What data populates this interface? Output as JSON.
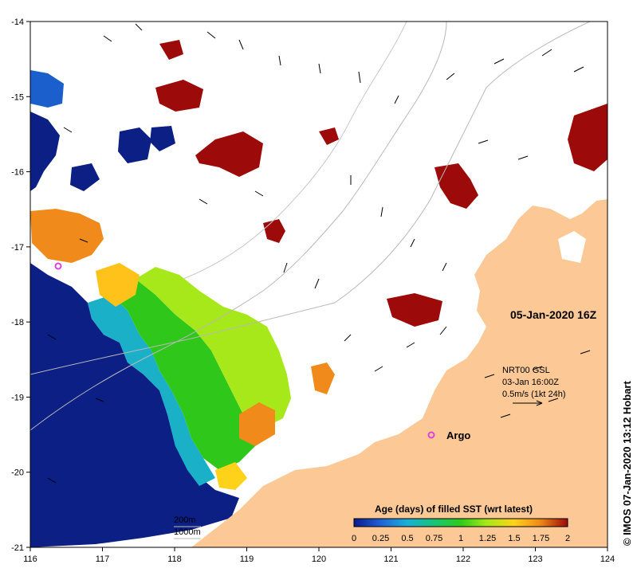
{
  "map": {
    "date_label": "05-Jan-2020 16Z",
    "credit": "© IMOS 07-Jan-2020 13:12 Hobart",
    "current_legend": {
      "line1": "NRT00 GSL",
      "line2": "03-Jan 16:00Z",
      "line3": "0.5m/s (1kt 24h)"
    },
    "argo_label": "Argo",
    "depth_labels": [
      "200m",
      "1000m"
    ],
    "lon_ticks": [
      "116",
      "117",
      "118",
      "119",
      "120",
      "121",
      "122",
      "123",
      "124"
    ],
    "lat_ticks": [
      "-14",
      "-15",
      "-16",
      "-17",
      "-18",
      "-19",
      "-20",
      "-21"
    ],
    "colorbar": {
      "title": "Age (days) of filled SST (wrt latest)",
      "ticks": [
        "0",
        "0.25",
        "0.5",
        "0.75",
        "1",
        "1.25",
        "1.5",
        "1.75",
        "2"
      ],
      "colors": [
        "#0a1a8c",
        "#1f5fd6",
        "#19b0d8",
        "#18c27a",
        "#2ecc1a",
        "#a6e81a",
        "#ffd21a",
        "#f08a1a",
        "#d8261a",
        "#9c0a0a"
      ]
    },
    "colors": {
      "land": "#fbc896",
      "ocean_bg": "#ffffff",
      "old_sst": "#0b1f85",
      "very_old": "#9c0a0a",
      "argo": "#e040e0"
    }
  }
}
